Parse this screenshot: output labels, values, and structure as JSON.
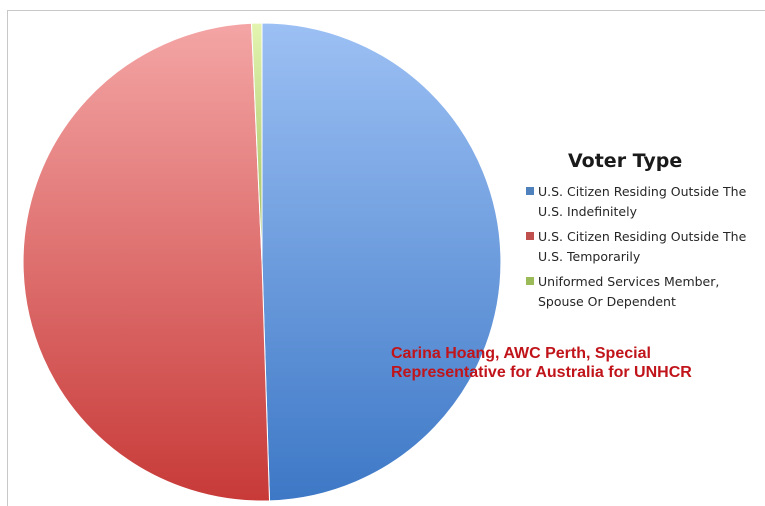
{
  "chart_data": {
    "type": "pie",
    "title": "Voter Type",
    "categories": [
      "U.S. Citizen Residing Outside The U.S. Indefinitely",
      "U.S. Citizen Residing Outside The U.S. Temporarily",
      "Uniformed Services Member, Spouse Or Dependent"
    ],
    "values": [
      49.5,
      49.8,
      0.7
    ],
    "colors": [
      "#4f81bd",
      "#c0504d",
      "#9bbb59"
    ],
    "legend_position": "right"
  },
  "legend": {
    "title": "Voter Type",
    "items": [
      {
        "label": "U.S. Citizen Residing Outside The U.S. Indefinitely",
        "color": "#4f81bd"
      },
      {
        "label": "U.S. Citizen Residing Outside The U.S. Temporarily",
        "color": "#c0504d"
      },
      {
        "label": "Uniformed Services Member, Spouse Or Dependent",
        "color": "#9bbb59"
      }
    ]
  },
  "credit": {
    "line1": "Carina Hoang, AWC Perth, Special",
    "line2": "Representative for Australia for UNHCR"
  }
}
